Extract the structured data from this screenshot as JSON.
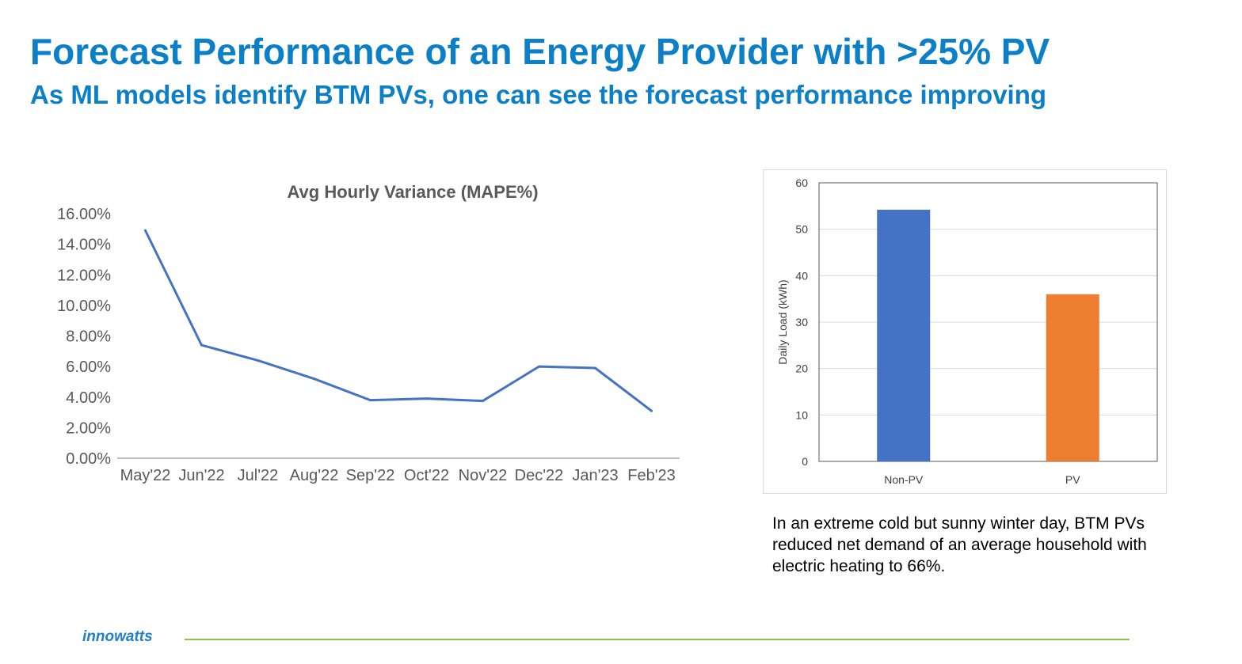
{
  "header": {
    "title": "Forecast Performance of an Energy Provider with >25% PV",
    "subtitle": "As ML models identify BTM PVs, one can see the forecast performance improving"
  },
  "chart_data": [
    {
      "type": "line",
      "title": "Avg Hourly Variance (MAPE%)",
      "categories": [
        "May'22",
        "Jun'22",
        "Jul'22",
        "Aug'22",
        "Sep'22",
        "Oct'22",
        "Nov'22",
        "Dec'22",
        "Jan'23",
        "Feb'23"
      ],
      "values": [
        14.9,
        7.4,
        6.4,
        5.2,
        3.8,
        3.9,
        3.75,
        6.0,
        5.9,
        3.1
      ],
      "ylim": [
        0,
        16
      ],
      "yticks": [
        "0.00%",
        "2.00%",
        "4.00%",
        "6.00%",
        "8.00%",
        "10.00%",
        "12.00%",
        "14.00%",
        "16.00%"
      ],
      "xlabel": "",
      "ylabel": "",
      "color": "#4472c4",
      "grid": false
    },
    {
      "type": "bar",
      "title": "",
      "categories": [
        "Non-PV",
        "PV"
      ],
      "values": [
        54.2,
        36.0
      ],
      "colors": [
        "#4472c4",
        "#ed7d31"
      ],
      "ylim": [
        0,
        60
      ],
      "yticks": [
        "0",
        "10",
        "20",
        "30",
        "40",
        "50",
        "60"
      ],
      "xlabel": "",
      "ylabel": "Daily Load (kWh)",
      "grid": true
    }
  ],
  "caption": {
    "text": "In an extreme cold but sunny winter day, BTM PVs reduced net demand of an average household with electric heating to 66%."
  },
  "footer": {
    "logo_text": "innowatts"
  },
  "colors": {
    "title": "#0b7fc7",
    "footer_line": "#8cc34a",
    "logo": "#1f7fc6"
  }
}
